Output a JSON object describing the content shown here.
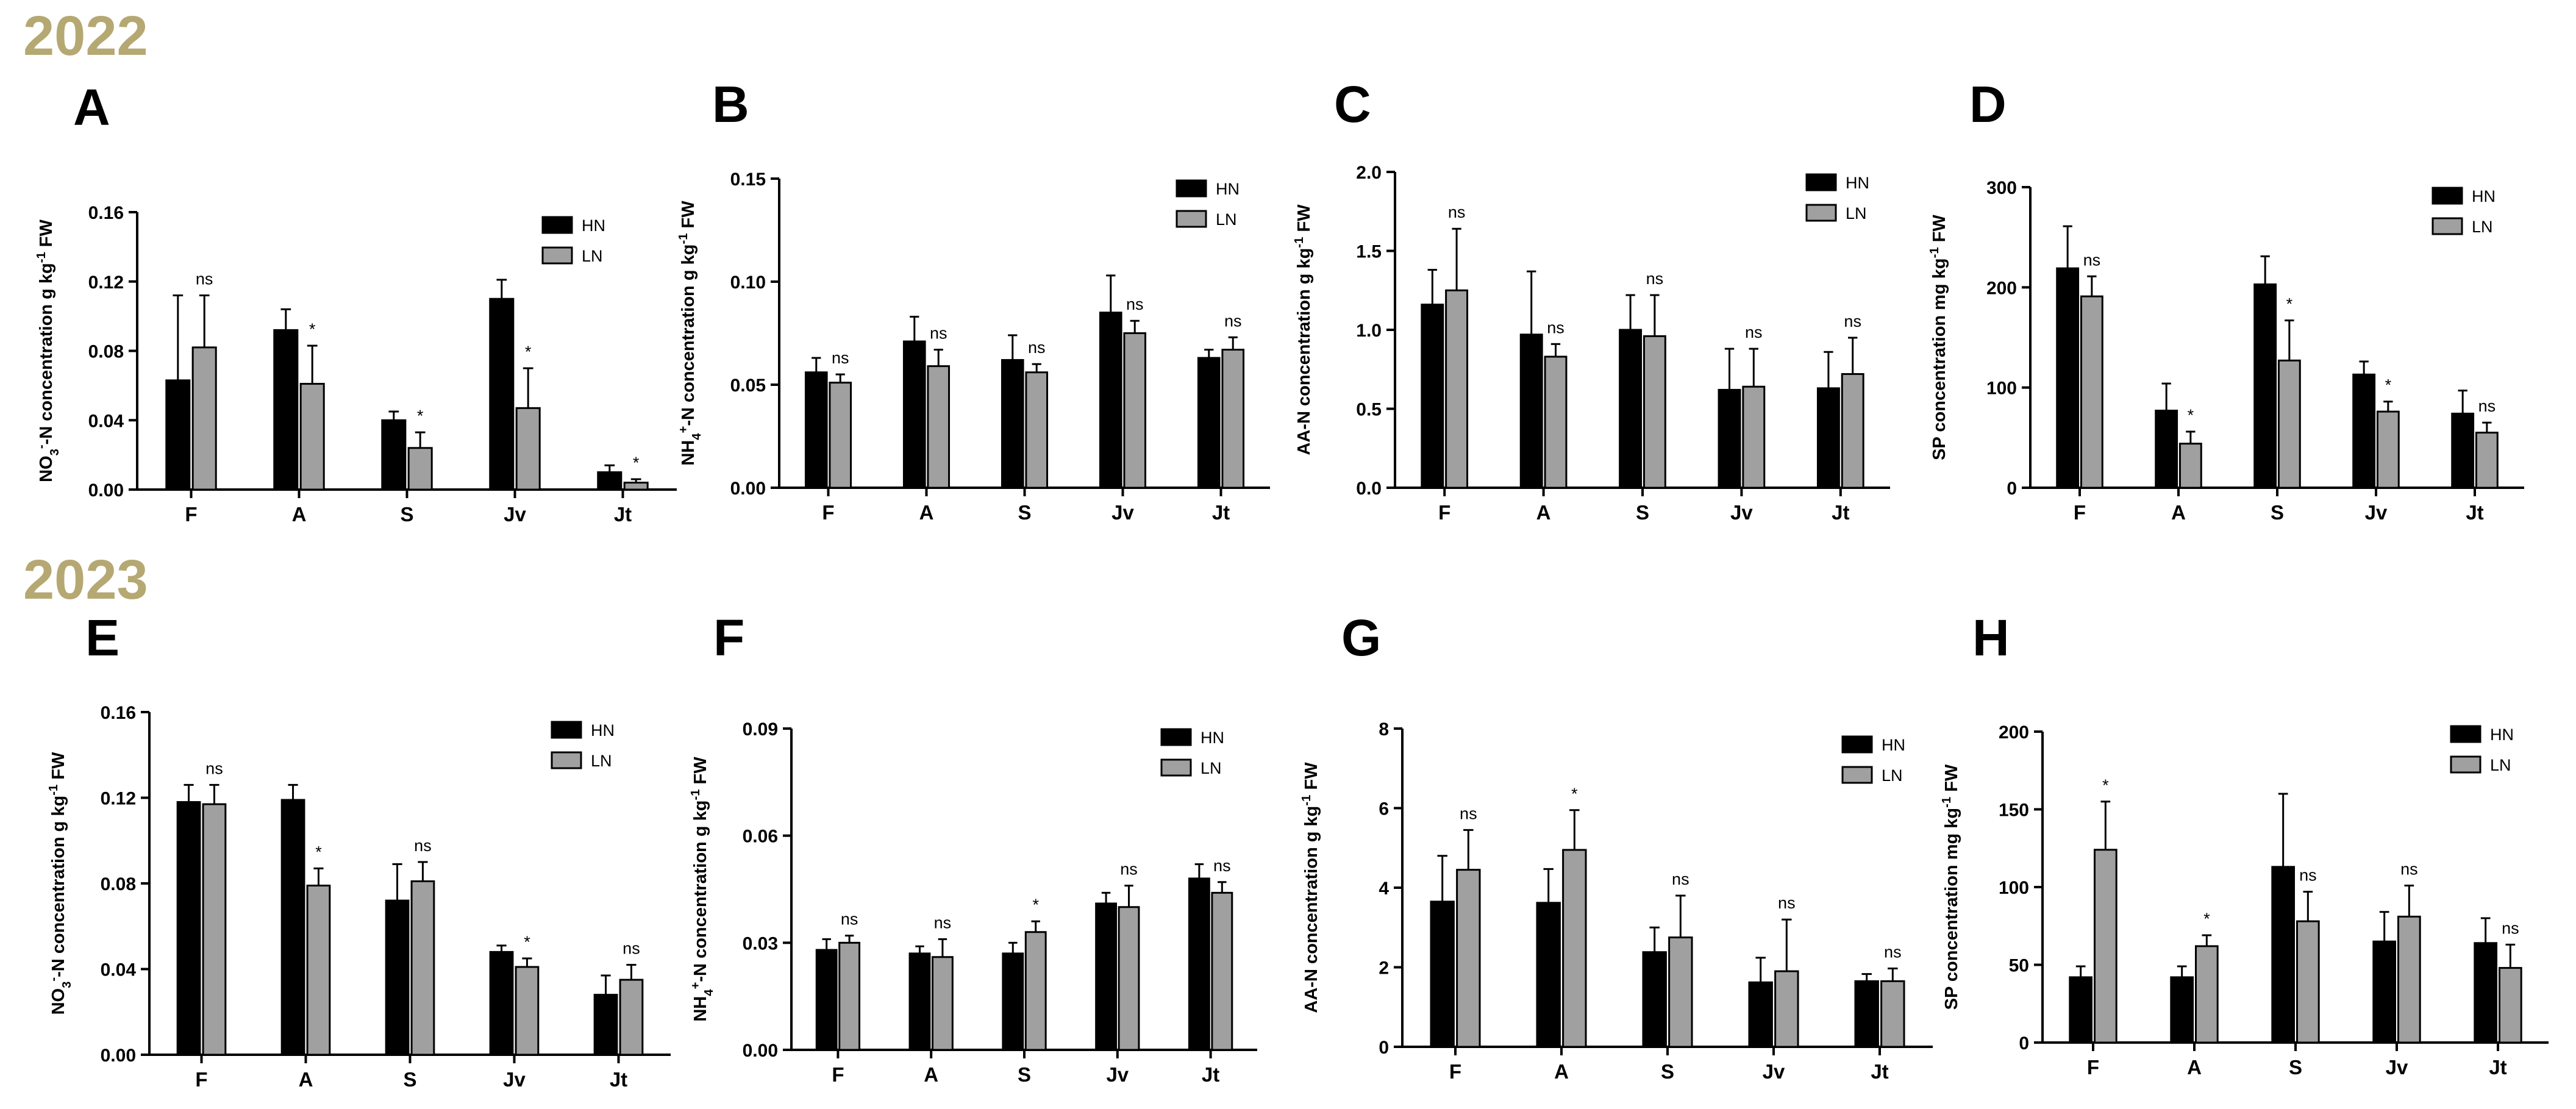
{
  "years": [
    "2022",
    "2023"
  ],
  "colors": {
    "HN": "#000000",
    "LN": "#a0a0a0",
    "year": "#b5a872"
  },
  "chart_data": [
    {
      "id": "A",
      "type": "bar",
      "year": "2022",
      "ylabel_html": "NO<tspan baseline-shift='sub' font-size='70%'>3</tspan><tspan baseline-shift='super' font-size='70%'>-</tspan>-N concentration g kg<tspan baseline-shift='super' font-size='70%'>-1</tspan> FW",
      "ylabel": "NO3-N concentration g kg-1 FW",
      "ylim": [
        0,
        0.16
      ],
      "yticks": [
        "0.00",
        "0.04",
        "0.08",
        "0.12",
        "0.16"
      ],
      "categories": [
        "F",
        "A",
        "S",
        "Jv",
        "Jt"
      ],
      "series": [
        {
          "name": "HN",
          "values": [
            0.063,
            0.092,
            0.04,
            0.11,
            0.01
          ],
          "errors": [
            0.049,
            0.012,
            0.005,
            0.011,
            0.004
          ]
        },
        {
          "name": "LN",
          "values": [
            0.082,
            0.061,
            0.024,
            0.047,
            0.004
          ],
          "errors": [
            0.03,
            0.022,
            0.009,
            0.023,
            0.002
          ]
        }
      ],
      "significance": [
        "ns",
        "*",
        "*",
        "*",
        "*"
      ]
    },
    {
      "id": "B",
      "type": "bar",
      "year": "2022",
      "ylabel_html": "NH<tspan baseline-shift='sub' font-size='70%'>4</tspan><tspan baseline-shift='super' font-size='70%'>+</tspan>-N concentration g kg<tspan baseline-shift='super' font-size='70%'>-1</tspan> FW",
      "ylabel": "NH4+-N concentration g kg-1 FW",
      "ylim": [
        0,
        0.15
      ],
      "yticks": [
        "0.00",
        "0.05",
        "0.10",
        "0.15"
      ],
      "categories": [
        "F",
        "A",
        "S",
        "Jv",
        "Jt"
      ],
      "series": [
        {
          "name": "HN",
          "values": [
            0.056,
            0.071,
            0.062,
            0.085,
            0.063
          ],
          "errors": [
            0.007,
            0.012,
            0.012,
            0.018,
            0.004
          ]
        },
        {
          "name": "LN",
          "values": [
            0.051,
            0.059,
            0.056,
            0.075,
            0.067
          ],
          "errors": [
            0.004,
            0.008,
            0.004,
            0.006,
            0.006
          ]
        }
      ],
      "significance": [
        "ns",
        "ns",
        "ns",
        "ns",
        "ns"
      ]
    },
    {
      "id": "C",
      "type": "bar",
      "year": "2022",
      "ylabel_html": "AA-N concentration g kg<tspan baseline-shift='super' font-size='70%'>-1</tspan> FW",
      "ylabel": "AA-N concentration g kg-1 FW",
      "ylim": [
        0,
        2.0
      ],
      "yticks": [
        "0.0",
        "0.5",
        "1.0",
        "1.5",
        "2.0"
      ],
      "categories": [
        "F",
        "A",
        "S",
        "Jv",
        "Jt"
      ],
      "series": [
        {
          "name": "HN",
          "values": [
            1.16,
            0.97,
            1.0,
            0.62,
            0.63
          ],
          "errors": [
            0.22,
            0.4,
            0.22,
            0.26,
            0.23
          ]
        },
        {
          "name": "LN",
          "values": [
            1.25,
            0.83,
            0.96,
            0.64,
            0.72
          ],
          "errors": [
            0.39,
            0.08,
            0.26,
            0.24,
            0.23
          ]
        }
      ],
      "significance": [
        "ns",
        "ns",
        "ns",
        "ns",
        "ns"
      ]
    },
    {
      "id": "D",
      "type": "bar",
      "year": "2022",
      "ylabel_html": "SP concentration mg kg<tspan baseline-shift='super' font-size='70%'>-1</tspan> FW",
      "ylabel": "SP concentration mg kg-1 FW",
      "ylim": [
        0,
        300
      ],
      "yticks": [
        "0",
        "100",
        "200",
        "300"
      ],
      "categories": [
        "F",
        "A",
        "S",
        "Jv",
        "Jt"
      ],
      "series": [
        {
          "name": "HN",
          "values": [
            219,
            77,
            203,
            113,
            74
          ],
          "errors": [
            42,
            27,
            28,
            13,
            23
          ]
        },
        {
          "name": "LN",
          "values": [
            191,
            44,
            127,
            76,
            55
          ],
          "errors": [
            20,
            12,
            40,
            10,
            10
          ]
        }
      ],
      "significance": [
        "ns",
        "*",
        "*",
        "*",
        "ns"
      ]
    },
    {
      "id": "E",
      "type": "bar",
      "year": "2023",
      "ylabel_html": "NO<tspan baseline-shift='sub' font-size='70%'>3</tspan><tspan baseline-shift='super' font-size='70%'>-</tspan>-N concentration g kg<tspan baseline-shift='super' font-size='70%'>-1</tspan> FW",
      "ylabel": "NO3-N concentration g kg-1 FW",
      "ylim": [
        0,
        0.16
      ],
      "yticks": [
        "0.00",
        "0.04",
        "0.08",
        "0.12",
        "0.16"
      ],
      "categories": [
        "F",
        "A",
        "S",
        "Jv",
        "Jt"
      ],
      "series": [
        {
          "name": "HN",
          "values": [
            0.118,
            0.119,
            0.072,
            0.048,
            0.028
          ],
          "errors": [
            0.008,
            0.007,
            0.017,
            0.003,
            0.009
          ]
        },
        {
          "name": "LN",
          "values": [
            0.117,
            0.079,
            0.081,
            0.041,
            0.035
          ],
          "errors": [
            0.009,
            0.008,
            0.009,
            0.004,
            0.007
          ]
        }
      ],
      "significance": [
        "ns",
        "*",
        "ns",
        "*",
        "ns"
      ]
    },
    {
      "id": "F",
      "type": "bar",
      "year": "2023",
      "ylabel_html": "NH<tspan baseline-shift='sub' font-size='70%'>4</tspan><tspan baseline-shift='super' font-size='70%'>+</tspan>-N concentration g kg<tspan baseline-shift='super' font-size='70%'>-1</tspan> FW",
      "ylabel": "NH4+-N concentration g kg-1 FW",
      "ylim": [
        0,
        0.09
      ],
      "yticks": [
        "0.00",
        "0.03",
        "0.06",
        "0.09"
      ],
      "categories": [
        "F",
        "A",
        "S",
        "Jv",
        "Jt"
      ],
      "series": [
        {
          "name": "HN",
          "values": [
            0.028,
            0.027,
            0.027,
            0.041,
            0.048
          ],
          "errors": [
            0.003,
            0.002,
            0.003,
            0.003,
            0.004
          ]
        },
        {
          "name": "LN",
          "values": [
            0.03,
            0.026,
            0.033,
            0.04,
            0.044
          ],
          "errors": [
            0.002,
            0.005,
            0.003,
            0.006,
            0.003
          ]
        }
      ],
      "significance": [
        "ns",
        "ns",
        "*",
        "ns",
        "ns"
      ]
    },
    {
      "id": "G",
      "type": "bar",
      "year": "2023",
      "ylabel_html": "AA-N concentration g kg<tspan baseline-shift='super' font-size='70%'>-1</tspan> FW",
      "ylabel": "AA-N concentration g kg-1 FW",
      "ylim": [
        0,
        8
      ],
      "yticks": [
        "0",
        "2",
        "4",
        "6",
        "8"
      ],
      "categories": [
        "F",
        "A",
        "S",
        "Jv",
        "Jt"
      ],
      "series": [
        {
          "name": "HN",
          "values": [
            3.65,
            3.62,
            2.38,
            1.62,
            1.65
          ],
          "errors": [
            1.15,
            0.85,
            0.62,
            0.62,
            0.18
          ]
        },
        {
          "name": "LN",
          "values": [
            4.45,
            4.95,
            2.75,
            1.9,
            1.65
          ],
          "errors": [
            1.0,
            1.0,
            1.05,
            1.3,
            0.32
          ]
        }
      ],
      "significance": [
        "ns",
        "*",
        "ns",
        "ns",
        "ns"
      ]
    },
    {
      "id": "H",
      "type": "bar",
      "year": "2023",
      "ylabel_html": "SP concentration mg kg<tspan baseline-shift='super' font-size='70%'>-1</tspan> FW",
      "ylabel": "SP concentration mg kg-1 FW",
      "ylim": [
        0,
        200
      ],
      "yticks": [
        "0",
        "50",
        "100",
        "150",
        "200"
      ],
      "categories": [
        "F",
        "A",
        "S",
        "Jv",
        "Jt"
      ],
      "series": [
        {
          "name": "HN",
          "values": [
            42,
            42,
            113,
            65,
            64
          ],
          "errors": [
            7,
            7,
            47,
            19,
            16
          ]
        },
        {
          "name": "LN",
          "values": [
            124,
            62,
            78,
            81,
            48
          ],
          "errors": [
            31,
            7,
            19,
            20,
            15
          ]
        }
      ],
      "significance": [
        "*",
        "*",
        "ns",
        "ns",
        "ns"
      ]
    }
  ]
}
